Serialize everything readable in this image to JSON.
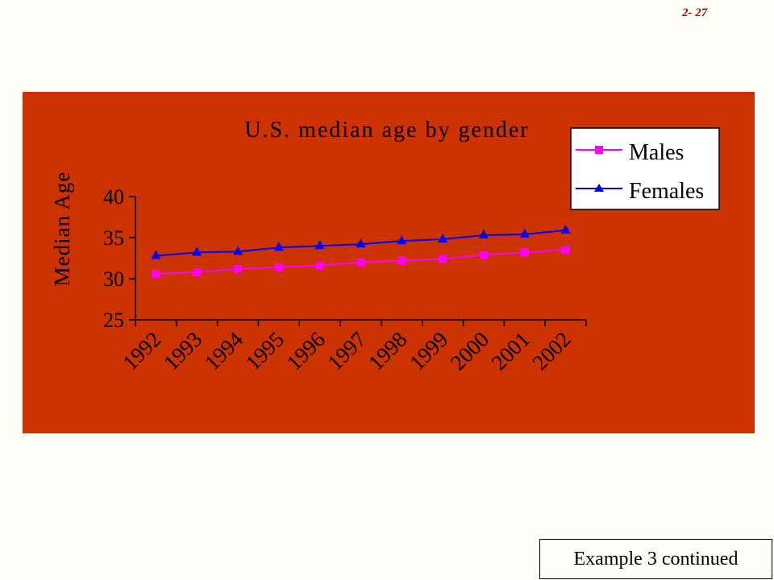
{
  "slide": {
    "number": "2- 27",
    "caption": "Example 3 continued"
  },
  "colors": {
    "panel": "#cc3300",
    "males": "#ff00ff",
    "females": "#0000ff",
    "text": "#000000",
    "legend_bg": "#ffffff"
  },
  "chart_data": {
    "type": "line",
    "title": "U.S. median age by gender",
    "xlabel": "",
    "ylabel": "Median Age",
    "categories": [
      "1992",
      "1993",
      "1994",
      "1995",
      "1996",
      "1997",
      "1998",
      "1999",
      "2000",
      "2001",
      "2002"
    ],
    "series": [
      {
        "name": "Males",
        "marker": "square",
        "color": "#ff00ff",
        "values": [
          30.6,
          30.8,
          31.2,
          31.4,
          31.6,
          32.0,
          32.2,
          32.4,
          32.9,
          33.2,
          33.5
        ]
      },
      {
        "name": "Females",
        "marker": "triangle",
        "color": "#0000ff",
        "values": [
          32.8,
          33.2,
          33.3,
          33.8,
          34.0,
          34.2,
          34.6,
          34.8,
          35.3,
          35.4,
          35.9
        ]
      }
    ],
    "ylim": [
      25,
      40
    ],
    "yticks": [
      25,
      30,
      35,
      40
    ],
    "grid": false,
    "legend_position": "top-right"
  }
}
